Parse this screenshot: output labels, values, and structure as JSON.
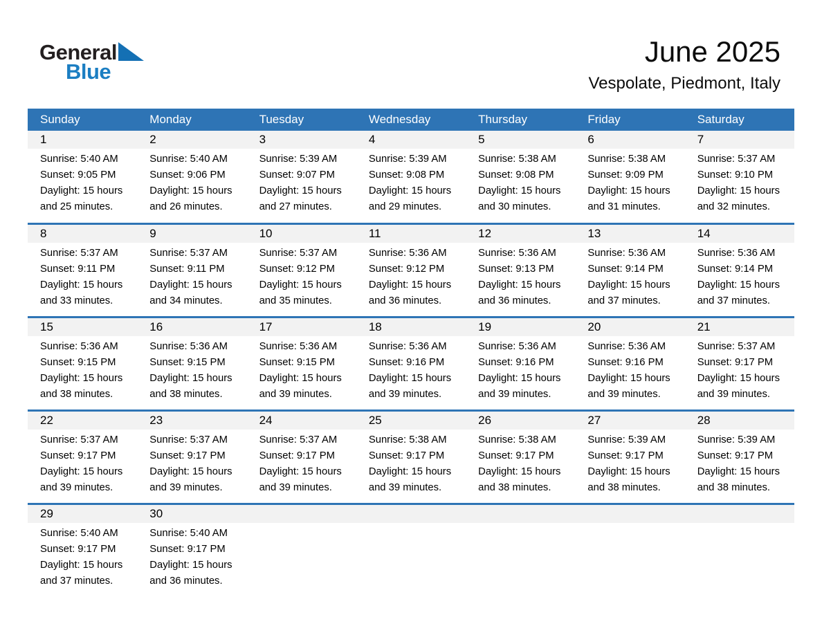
{
  "logo": {
    "general": "General",
    "blue": "Blue"
  },
  "header": {
    "title": "June 2025",
    "subtitle": "Vespolate, Piedmont, Italy"
  },
  "colors": {
    "header_bg": "#2E74B5",
    "separator": "#2E74B5",
    "number_band": "#F2F2F2",
    "logo_blue": "#1B7EC2",
    "triangle_blue": "#1470B4"
  },
  "calendar": {
    "day_headers": [
      "Sunday",
      "Monday",
      "Tuesday",
      "Wednesday",
      "Thursday",
      "Friday",
      "Saturday"
    ],
    "weeks": [
      [
        {
          "n": "1",
          "sunrise": "Sunrise: 5:40 AM",
          "sunset": "Sunset: 9:05 PM",
          "daylight1": "Daylight: 15 hours",
          "daylight2": "and 25 minutes."
        },
        {
          "n": "2",
          "sunrise": "Sunrise: 5:40 AM",
          "sunset": "Sunset: 9:06 PM",
          "daylight1": "Daylight: 15 hours",
          "daylight2": "and 26 minutes."
        },
        {
          "n": "3",
          "sunrise": "Sunrise: 5:39 AM",
          "sunset": "Sunset: 9:07 PM",
          "daylight1": "Daylight: 15 hours",
          "daylight2": "and 27 minutes."
        },
        {
          "n": "4",
          "sunrise": "Sunrise: 5:39 AM",
          "sunset": "Sunset: 9:08 PM",
          "daylight1": "Daylight: 15 hours",
          "daylight2": "and 29 minutes."
        },
        {
          "n": "5",
          "sunrise": "Sunrise: 5:38 AM",
          "sunset": "Sunset: 9:08 PM",
          "daylight1": "Daylight: 15 hours",
          "daylight2": "and 30 minutes."
        },
        {
          "n": "6",
          "sunrise": "Sunrise: 5:38 AM",
          "sunset": "Sunset: 9:09 PM",
          "daylight1": "Daylight: 15 hours",
          "daylight2": "and 31 minutes."
        },
        {
          "n": "7",
          "sunrise": "Sunrise: 5:37 AM",
          "sunset": "Sunset: 9:10 PM",
          "daylight1": "Daylight: 15 hours",
          "daylight2": "and 32 minutes."
        }
      ],
      [
        {
          "n": "8",
          "sunrise": "Sunrise: 5:37 AM",
          "sunset": "Sunset: 9:11 PM",
          "daylight1": "Daylight: 15 hours",
          "daylight2": "and 33 minutes."
        },
        {
          "n": "9",
          "sunrise": "Sunrise: 5:37 AM",
          "sunset": "Sunset: 9:11 PM",
          "daylight1": "Daylight: 15 hours",
          "daylight2": "and 34 minutes."
        },
        {
          "n": "10",
          "sunrise": "Sunrise: 5:37 AM",
          "sunset": "Sunset: 9:12 PM",
          "daylight1": "Daylight: 15 hours",
          "daylight2": "and 35 minutes."
        },
        {
          "n": "11",
          "sunrise": "Sunrise: 5:36 AM",
          "sunset": "Sunset: 9:12 PM",
          "daylight1": "Daylight: 15 hours",
          "daylight2": "and 36 minutes."
        },
        {
          "n": "12",
          "sunrise": "Sunrise: 5:36 AM",
          "sunset": "Sunset: 9:13 PM",
          "daylight1": "Daylight: 15 hours",
          "daylight2": "and 36 minutes."
        },
        {
          "n": "13",
          "sunrise": "Sunrise: 5:36 AM",
          "sunset": "Sunset: 9:14 PM",
          "daylight1": "Daylight: 15 hours",
          "daylight2": "and 37 minutes."
        },
        {
          "n": "14",
          "sunrise": "Sunrise: 5:36 AM",
          "sunset": "Sunset: 9:14 PM",
          "daylight1": "Daylight: 15 hours",
          "daylight2": "and 37 minutes."
        }
      ],
      [
        {
          "n": "15",
          "sunrise": "Sunrise: 5:36 AM",
          "sunset": "Sunset: 9:15 PM",
          "daylight1": "Daylight: 15 hours",
          "daylight2": "and 38 minutes."
        },
        {
          "n": "16",
          "sunrise": "Sunrise: 5:36 AM",
          "sunset": "Sunset: 9:15 PM",
          "daylight1": "Daylight: 15 hours",
          "daylight2": "and 38 minutes."
        },
        {
          "n": "17",
          "sunrise": "Sunrise: 5:36 AM",
          "sunset": "Sunset: 9:15 PM",
          "daylight1": "Daylight: 15 hours",
          "daylight2": "and 39 minutes."
        },
        {
          "n": "18",
          "sunrise": "Sunrise: 5:36 AM",
          "sunset": "Sunset: 9:16 PM",
          "daylight1": "Daylight: 15 hours",
          "daylight2": "and 39 minutes."
        },
        {
          "n": "19",
          "sunrise": "Sunrise: 5:36 AM",
          "sunset": "Sunset: 9:16 PM",
          "daylight1": "Daylight: 15 hours",
          "daylight2": "and 39 minutes."
        },
        {
          "n": "20",
          "sunrise": "Sunrise: 5:36 AM",
          "sunset": "Sunset: 9:16 PM",
          "daylight1": "Daylight: 15 hours",
          "daylight2": "and 39 minutes."
        },
        {
          "n": "21",
          "sunrise": "Sunrise: 5:37 AM",
          "sunset": "Sunset: 9:17 PM",
          "daylight1": "Daylight: 15 hours",
          "daylight2": "and 39 minutes."
        }
      ],
      [
        {
          "n": "22",
          "sunrise": "Sunrise: 5:37 AM",
          "sunset": "Sunset: 9:17 PM",
          "daylight1": "Daylight: 15 hours",
          "daylight2": "and 39 minutes."
        },
        {
          "n": "23",
          "sunrise": "Sunrise: 5:37 AM",
          "sunset": "Sunset: 9:17 PM",
          "daylight1": "Daylight: 15 hours",
          "daylight2": "and 39 minutes."
        },
        {
          "n": "24",
          "sunrise": "Sunrise: 5:37 AM",
          "sunset": "Sunset: 9:17 PM",
          "daylight1": "Daylight: 15 hours",
          "daylight2": "and 39 minutes."
        },
        {
          "n": "25",
          "sunrise": "Sunrise: 5:38 AM",
          "sunset": "Sunset: 9:17 PM",
          "daylight1": "Daylight: 15 hours",
          "daylight2": "and 39 minutes."
        },
        {
          "n": "26",
          "sunrise": "Sunrise: 5:38 AM",
          "sunset": "Sunset: 9:17 PM",
          "daylight1": "Daylight: 15 hours",
          "daylight2": "and 38 minutes."
        },
        {
          "n": "27",
          "sunrise": "Sunrise: 5:39 AM",
          "sunset": "Sunset: 9:17 PM",
          "daylight1": "Daylight: 15 hours",
          "daylight2": "and 38 minutes."
        },
        {
          "n": "28",
          "sunrise": "Sunrise: 5:39 AM",
          "sunset": "Sunset: 9:17 PM",
          "daylight1": "Daylight: 15 hours",
          "daylight2": "and 38 minutes."
        }
      ],
      [
        {
          "n": "29",
          "sunrise": "Sunrise: 5:40 AM",
          "sunset": "Sunset: 9:17 PM",
          "daylight1": "Daylight: 15 hours",
          "daylight2": "and 37 minutes."
        },
        {
          "n": "30",
          "sunrise": "Sunrise: 5:40 AM",
          "sunset": "Sunset: 9:17 PM",
          "daylight1": "Daylight: 15 hours",
          "daylight2": "and 36 minutes."
        },
        null,
        null,
        null,
        null,
        null
      ]
    ]
  }
}
